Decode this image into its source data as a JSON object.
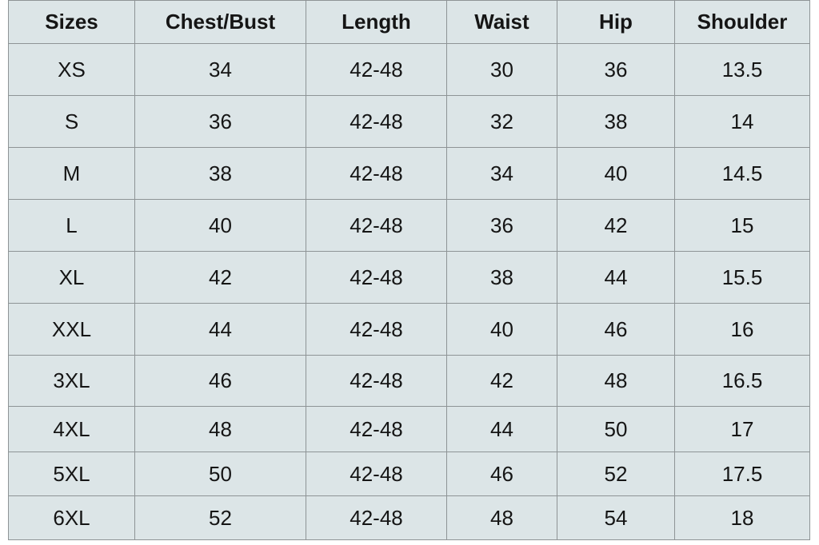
{
  "table": {
    "header": [
      "Sizes",
      "Chest/Bust",
      "Length",
      "Waist",
      "Hip",
      "Shoulder"
    ],
    "rows": [
      [
        "XS",
        "34",
        "42-48",
        "30",
        "36",
        "13.5"
      ],
      [
        "S",
        "36",
        "42-48",
        "32",
        "38",
        "14"
      ],
      [
        "M",
        "38",
        "42-48",
        "34",
        "40",
        "14.5"
      ],
      [
        "L",
        "40",
        "42-48",
        "36",
        "42",
        "15"
      ],
      [
        "XL",
        "42",
        "42-48",
        "38",
        "44",
        "15.5"
      ],
      [
        "XXL",
        "44",
        "42-48",
        "40",
        "46",
        "16"
      ],
      [
        "3XL",
        "46",
        "42-48",
        "42",
        "48",
        "16.5"
      ],
      [
        "4XL",
        "48",
        "42-48",
        "44",
        "50",
        "17"
      ],
      [
        "5XL",
        "50",
        "42-48",
        "46",
        "52",
        "17.5"
      ],
      [
        "6XL",
        "52",
        "42-48",
        "48",
        "54",
        "18"
      ]
    ]
  }
}
